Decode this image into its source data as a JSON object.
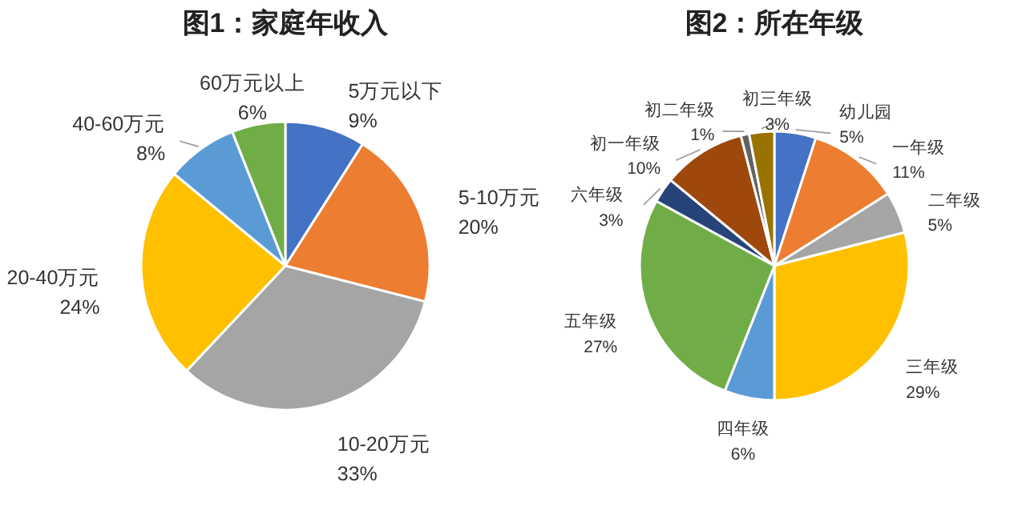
{
  "chart_data": [
    {
      "type": "pie",
      "title": "图1：家庭年收入",
      "categories": [
        "5万元以下",
        "5-10万元",
        "10-20万元",
        "20-40万元",
        "40-60万元",
        "60万元以上"
      ],
      "values": [
        9,
        20,
        33,
        24,
        8,
        6
      ],
      "colors": [
        "#4472c4",
        "#ed7d31",
        "#a5a5a5",
        "#ffc000",
        "#5b9bd5",
        "#70ad47"
      ],
      "value_labels": [
        "9%",
        "20%",
        "33%",
        "24%",
        "8%",
        "6%"
      ]
    },
    {
      "type": "pie",
      "title": "图2：所在年级",
      "categories": [
        "幼儿园",
        "一年级",
        "二年级",
        "三年级",
        "四年级",
        "五年级",
        "六年级",
        "初一年级",
        "初二年级",
        "初三年级"
      ],
      "values": [
        5,
        11,
        5,
        29,
        6,
        27,
        3,
        10,
        1,
        3
      ],
      "colors": [
        "#4472c4",
        "#ed7d31",
        "#a5a5a5",
        "#ffc000",
        "#5b9bd5",
        "#70ad47",
        "#264478",
        "#9e480e",
        "#636363",
        "#997300"
      ],
      "value_labels": [
        "5%",
        "11%",
        "5%",
        "29%",
        "6%",
        "27%",
        "3%",
        "10%",
        "1%",
        "3%"
      ]
    }
  ]
}
